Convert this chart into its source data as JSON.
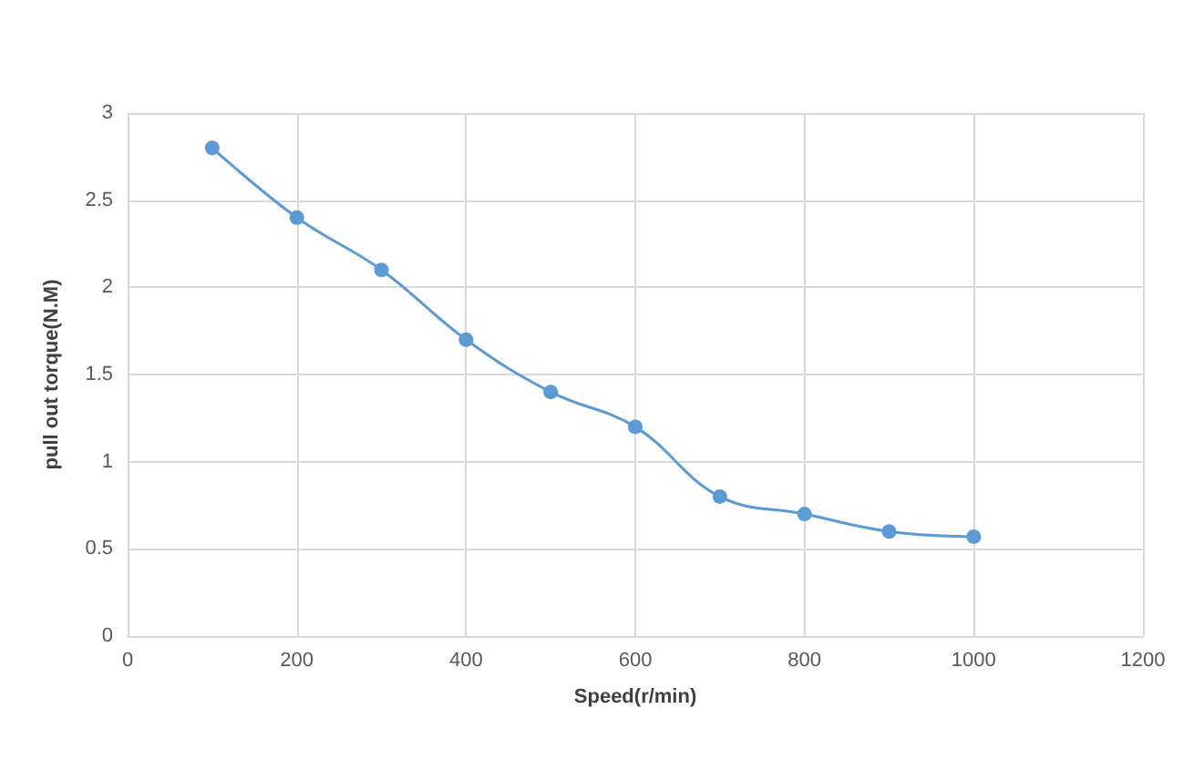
{
  "chart_data": {
    "type": "line",
    "xlabel": "Speed(r/min)",
    "ylabel": "pull out torque(N.M)",
    "x": [
      100,
      200,
      300,
      400,
      500,
      600,
      700,
      800,
      900,
      1000
    ],
    "series": [
      {
        "color": "#5b9bd5",
        "values": [
          2.8,
          2.4,
          2.1,
          1.7,
          1.4,
          1.2,
          0.8,
          0.7,
          0.6,
          0.57
        ]
      }
    ],
    "xlim": [
      0,
      1200
    ],
    "xticks": [
      0,
      200,
      400,
      600,
      800,
      1000,
      1200
    ],
    "ylim": [
      0,
      3
    ],
    "yticks": [
      0,
      0.5,
      1,
      1.5,
      2,
      2.5,
      3
    ],
    "grid": true,
    "marker": "circle",
    "line_style": "solid"
  }
}
